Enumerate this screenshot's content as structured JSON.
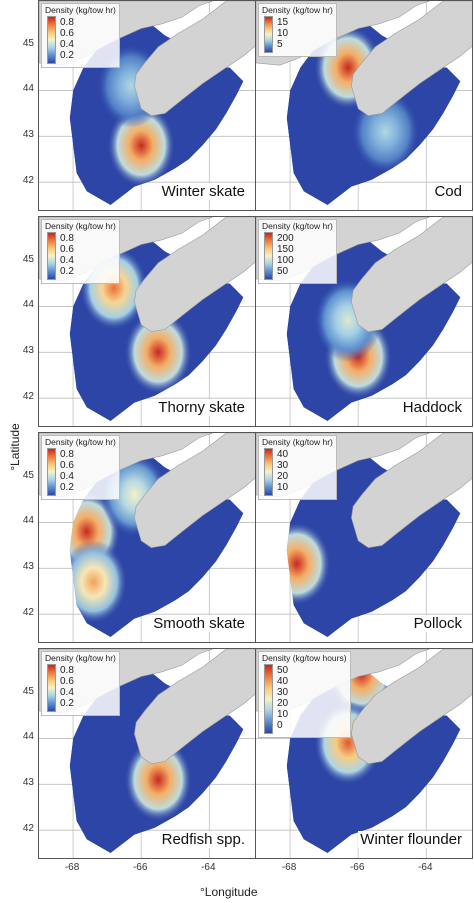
{
  "axes": {
    "y_title": "°Latitude",
    "x_title": "°Longitude",
    "y_ticks": [
      "45",
      "44",
      "43",
      "42"
    ],
    "x_ticks": [
      "-68",
      "-66",
      "-64"
    ]
  },
  "chart_data": [
    {
      "type": "heatmap",
      "species": "Winter skate",
      "legend_title": "Density (kg/tow hr)",
      "legend_ticks": [
        "0.8",
        "0.6",
        "0.4",
        "0.2"
      ],
      "hotspots": [
        {
          "lon": -66.0,
          "lat": 42.8,
          "level": 1.0
        },
        {
          "lon": -66.3,
          "lat": 44.1,
          "level": 0.35
        }
      ]
    },
    {
      "type": "heatmap",
      "species": "Cod",
      "legend_title": "Density (kg/tow hr)",
      "legend_ticks": [
        "15",
        "10",
        "5"
      ],
      "hotspots": [
        {
          "lon": -66.3,
          "lat": 44.5,
          "level": 1.0
        },
        {
          "lon": -65.2,
          "lat": 43.1,
          "level": 0.35
        }
      ]
    },
    {
      "type": "heatmap",
      "species": "Thorny skate",
      "legend_title": "Density (kg/tow hr)",
      "legend_ticks": [
        "0.8",
        "0.6",
        "0.4",
        "0.2"
      ],
      "hotspots": [
        {
          "lon": -66.8,
          "lat": 44.4,
          "level": 0.85
        },
        {
          "lon": -65.5,
          "lat": 43.0,
          "level": 1.0
        }
      ]
    },
    {
      "type": "heatmap",
      "species": "Haddock",
      "legend_title": "Density (kg/tow hr)",
      "legend_ticks": [
        "200",
        "150",
        "100",
        "50"
      ],
      "hotspots": [
        {
          "lon": -66.0,
          "lat": 42.9,
          "level": 1.0
        },
        {
          "lon": -66.3,
          "lat": 43.7,
          "level": 0.45
        }
      ]
    },
    {
      "type": "heatmap",
      "species": "Smooth skate",
      "legend_title": "Density (kg/tow hr)",
      "legend_ticks": [
        "0.8",
        "0.6",
        "0.4",
        "0.2"
      ],
      "hotspots": [
        {
          "lon": -67.6,
          "lat": 43.8,
          "level": 1.0
        },
        {
          "lon": -67.4,
          "lat": 42.7,
          "level": 0.75
        },
        {
          "lon": -66.2,
          "lat": 44.6,
          "level": 0.5
        }
      ]
    },
    {
      "type": "heatmap",
      "species": "Pollock",
      "legend_title": "Density (kg/tow hr)",
      "legend_ticks": [
        "40",
        "30",
        "20",
        "10"
      ],
      "hotspots": [
        {
          "lon": -67.8,
          "lat": 43.1,
          "level": 1.0
        }
      ]
    },
    {
      "type": "heatmap",
      "species": "Redfish spp.",
      "legend_title": "Density (kg/tow hr)",
      "legend_ticks": [
        "0.8",
        "0.6",
        "0.4",
        "0.2"
      ],
      "hotspots": [
        {
          "lon": -65.5,
          "lat": 43.1,
          "level": 1.0
        }
      ]
    },
    {
      "type": "heatmap",
      "species": "Winter flounder",
      "legend_title": "Density (kg/tow hours)",
      "legend_ticks": [
        "50",
        "40",
        "30",
        "20",
        "10",
        "0"
      ],
      "hotspots": [
        {
          "lon": -65.9,
          "lat": 45.4,
          "level": 1.0
        },
        {
          "lon": -66.3,
          "lat": 43.9,
          "level": 0.9
        }
      ]
    }
  ],
  "colors": {
    "scale": [
      "#2c45a6",
      "#5b8fcf",
      "#a9d4e6",
      "#f5f1c8",
      "#f8c77a",
      "#ee7a3a",
      "#c6281f"
    ],
    "land": "#d3d3d3",
    "water": "#ffffff",
    "grid": "#bfbfbf",
    "border": "#555555"
  }
}
